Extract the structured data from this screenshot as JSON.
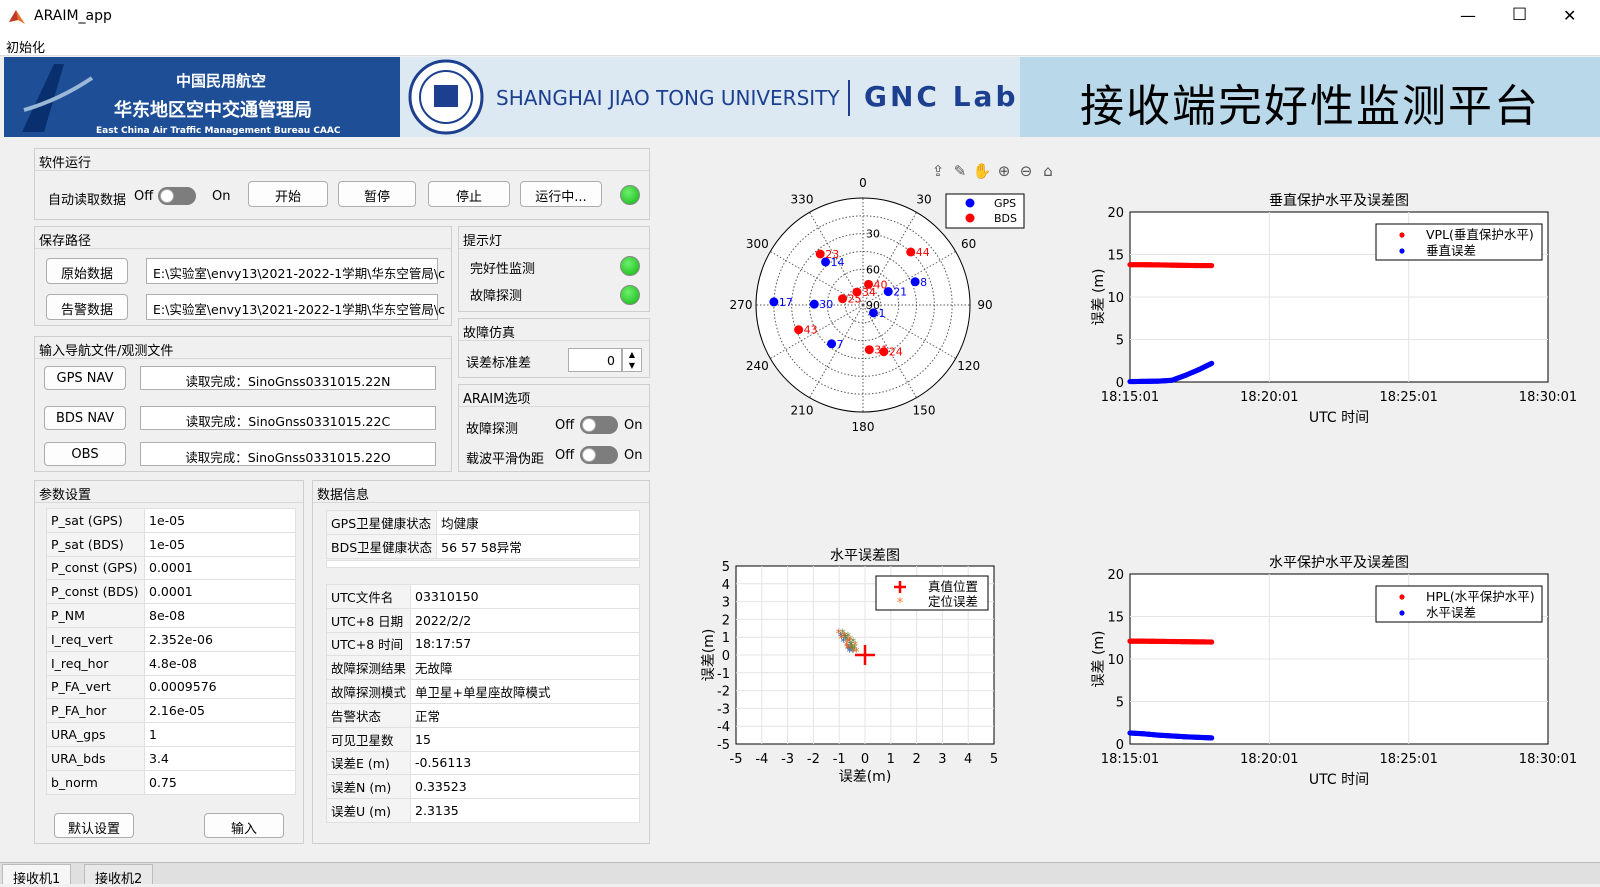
{
  "window": {
    "icon": "matlab-icon",
    "title": "ARAIM_app",
    "minimize": "—",
    "maximize": "☐",
    "close": "✕"
  },
  "menu": {
    "init": "初始化"
  },
  "banner": {
    "org_cn_1": "中国民用航空",
    "org_cn_2": "华东地区空中交通管理局",
    "org_en": "East China Air Traffic Management Bureau CAAC",
    "univ": "SHANGHAI JIAO TONG UNIVERSITY",
    "lab": "GNC Lab",
    "platform": "接收端完好性监测平台"
  },
  "run": {
    "title": "软件运行",
    "auto_read": "自动读取数据",
    "off": "Off",
    "on": "On",
    "start": "开始",
    "pause": "暂停",
    "stop": "停止",
    "status": "运行中..."
  },
  "save": {
    "title": "保存路径",
    "raw_btn": "原始数据",
    "raw_path": "E:\\实验室\\envy13\\2021-2022-1学期\\华东空管局\\c",
    "alarm_btn": "告警数据",
    "alarm_path": "E:\\实验室\\envy13\\2021-2022-1学期\\华东空管局\\c"
  },
  "indicator": {
    "title": "提示灯",
    "integrity": "完好性监测",
    "fault": "故障探测"
  },
  "fault_sim": {
    "title": "故障仿真",
    "label": "误差标准差",
    "value": "0"
  },
  "araim": {
    "title": "ARAIM选项",
    "fault": "故障探测",
    "smooth": "载波平滑伪距",
    "off": "Off",
    "on": "On"
  },
  "nav": {
    "title": "输入导航文件/观测文件",
    "gps_btn": "GPS NAV",
    "gps_file": "读取完成：SinoGnss0331015.22N",
    "bds_btn": "BDS NAV",
    "bds_file": "读取完成：SinoGnss0331015.22C",
    "obs_btn": "OBS",
    "obs_file": "读取完成：SinoGnss0331015.22O"
  },
  "params": {
    "title": "参数设置",
    "rows": [
      [
        "P_sat (GPS)",
        "1e-05"
      ],
      [
        "P_sat (BDS)",
        "1e-05"
      ],
      [
        "P_const (GPS)",
        "0.0001"
      ],
      [
        "P_const (BDS)",
        "0.0001"
      ],
      [
        "P_NM",
        "8e-08"
      ],
      [
        "I_req_vert",
        "2.352e-06"
      ],
      [
        "I_req_hor",
        "4.8e-08"
      ],
      [
        "P_FA_vert",
        "0.0009576"
      ],
      [
        "P_FA_hor",
        "2.16e-05"
      ],
      [
        "URA_gps",
        "1"
      ],
      [
        "URA_bds",
        "3.4"
      ],
      [
        "b_norm",
        "0.75"
      ]
    ],
    "default_btn": "默认设置",
    "input_btn": "输入"
  },
  "datainfo": {
    "title": "数据信息",
    "health": [
      [
        "GPS卫星健康状态",
        "均健康"
      ],
      [
        "BDS卫星健康状态",
        "56 57 58异常"
      ]
    ],
    "rows": [
      [
        "UTC文件名",
        "03310150"
      ],
      [
        "UTC+8 日期",
        "2022/2/2"
      ],
      [
        "UTC+8 时间",
        "18:17:57"
      ],
      [
        "故障探测结果",
        "无故障"
      ],
      [
        "故障探测模式",
        "单卫星+单星座故障模式"
      ],
      [
        "告警状态",
        "正常"
      ],
      [
        "可见卫星数",
        "15"
      ],
      [
        "误差E  (m)",
        "-0.56113"
      ],
      [
        "误差N  (m)",
        "0.33523"
      ],
      [
        "误差U  (m)",
        "2.3135"
      ]
    ]
  },
  "tabs": [
    "接收机1",
    "接收机2"
  ],
  "toolbar_icons": [
    "export-icon",
    "brush-icon",
    "pan-hand-icon",
    "zoom-in-icon",
    "zoom-out-icon",
    "home-icon"
  ],
  "skyplot": {
    "az_labels": [
      "0",
      "30",
      "60",
      "90",
      "120",
      "150",
      "180",
      "210",
      "240",
      "270",
      "300",
      "330"
    ],
    "el_labels": [
      "30",
      "60",
      "90"
    ],
    "legend": [
      "GPS",
      "BDS"
    ],
    "gps": [
      {
        "id": "14",
        "az": 319,
        "el": 42
      },
      {
        "id": "8",
        "az": 66,
        "el": 42
      },
      {
        "id": "21",
        "az": 62,
        "el": 66
      },
      {
        "id": "17",
        "az": 272,
        "el": 15
      },
      {
        "id": "30",
        "az": 271,
        "el": 49
      },
      {
        "id": "1",
        "az": 127,
        "el": 79
      },
      {
        "id": "7",
        "az": 219,
        "el": 48
      }
    ],
    "bds": [
      {
        "id": "23",
        "az": 320,
        "el": 34
      },
      {
        "id": "44",
        "az": 42,
        "el": 30
      },
      {
        "id": "40",
        "az": 15,
        "el": 72
      },
      {
        "id": "34",
        "az": 335,
        "el": 78
      },
      {
        "id": "25",
        "az": 287,
        "el": 72
      },
      {
        "id": "43",
        "az": 249,
        "el": 32
      },
      {
        "id": "31",
        "az": 172,
        "el": 52
      },
      {
        "id": "24",
        "az": 156,
        "el": 47
      }
    ],
    "colors": {
      "gps": "#0000ff",
      "bds": "#ff0000"
    }
  },
  "charts": {
    "vertical": {
      "title": "垂直保护水平及误差图",
      "ylabel": "误差 (m)",
      "xlabel": "UTC 时间",
      "legend": [
        "VPL(垂直保护水平)",
        "垂直误差"
      ]
    },
    "horizontal_pl": {
      "title": "水平保护水平及误差图",
      "ylabel": "误差 (m)",
      "xlabel": "UTC 时间",
      "legend": [
        "HPL(水平保护水平)",
        "水平误差"
      ]
    },
    "horiz_err": {
      "title": "水平误差图",
      "xlabel": "误差(m)",
      "ylabel": "误差(m)",
      "legend": [
        "真值位置",
        "定位误差"
      ]
    }
  },
  "chart_data": [
    {
      "type": "scatter",
      "title": "垂直保护水平及误差图",
      "xlabel": "UTC 时间",
      "ylabel": "误差 (m)",
      "x_ticks": [
        "18:15:01",
        "18:20:01",
        "18:25:01",
        "18:30:01"
      ],
      "ylim": [
        0,
        20
      ],
      "grid": true,
      "legend": "top-right",
      "series": [
        {
          "name": "VPL(垂直保护水平)",
          "color": "#ff0000",
          "t_min": [
            0,
            0.5,
            1,
            1.5,
            2,
            2.5,
            2.93
          ],
          "values": [
            13.8,
            13.8,
            13.78,
            13.75,
            13.72,
            13.7,
            13.7
          ]
        },
        {
          "name": "垂直误差",
          "color": "#0000ff",
          "t_min": [
            0,
            0.5,
            1,
            1.5,
            2,
            2.5,
            2.93
          ],
          "values": [
            0.05,
            0.08,
            0.1,
            0.2,
            0.8,
            1.5,
            2.2
          ]
        }
      ]
    },
    {
      "type": "scatter",
      "title": "水平保护水平及误差图",
      "xlabel": "UTC 时间",
      "ylabel": "误差 (m)",
      "x_ticks": [
        "18:15:01",
        "18:20:01",
        "18:25:01",
        "18:30:01"
      ],
      "ylim": [
        0,
        20
      ],
      "grid": true,
      "legend": "top-right",
      "series": [
        {
          "name": "HPL(水平保护水平)",
          "color": "#ff0000",
          "t_min": [
            0,
            0.5,
            1,
            1.5,
            2,
            2.5,
            2.93
          ],
          "values": [
            12.1,
            12.1,
            12.08,
            12.06,
            12.04,
            12.02,
            12.0
          ]
        },
        {
          "name": "水平误差",
          "color": "#0000ff",
          "t_min": [
            0,
            0.5,
            1,
            1.5,
            2,
            2.5,
            2.93
          ],
          "values": [
            1.3,
            1.2,
            1.05,
            0.95,
            0.85,
            0.78,
            0.72
          ]
        }
      ]
    },
    {
      "type": "scatter",
      "title": "水平误差图",
      "xlabel": "误差(m)",
      "ylabel": "误差(m)",
      "xlim": [
        -5,
        5
      ],
      "ylim": [
        -5,
        5
      ],
      "grid": true,
      "legend": "top-right",
      "series": [
        {
          "name": "真值位置",
          "color": "#ff0000",
          "x": [
            0
          ],
          "y": [
            0
          ]
        },
        {
          "name": "定位误差",
          "color": "#ff7733",
          "x": [
            -0.9,
            -0.7,
            -0.5,
            -0.6,
            -0.8,
            -0.45,
            -0.56
          ],
          "y": [
            1.2,
            1.0,
            0.7,
            0.5,
            0.9,
            0.35,
            0.34
          ]
        }
      ]
    }
  ]
}
